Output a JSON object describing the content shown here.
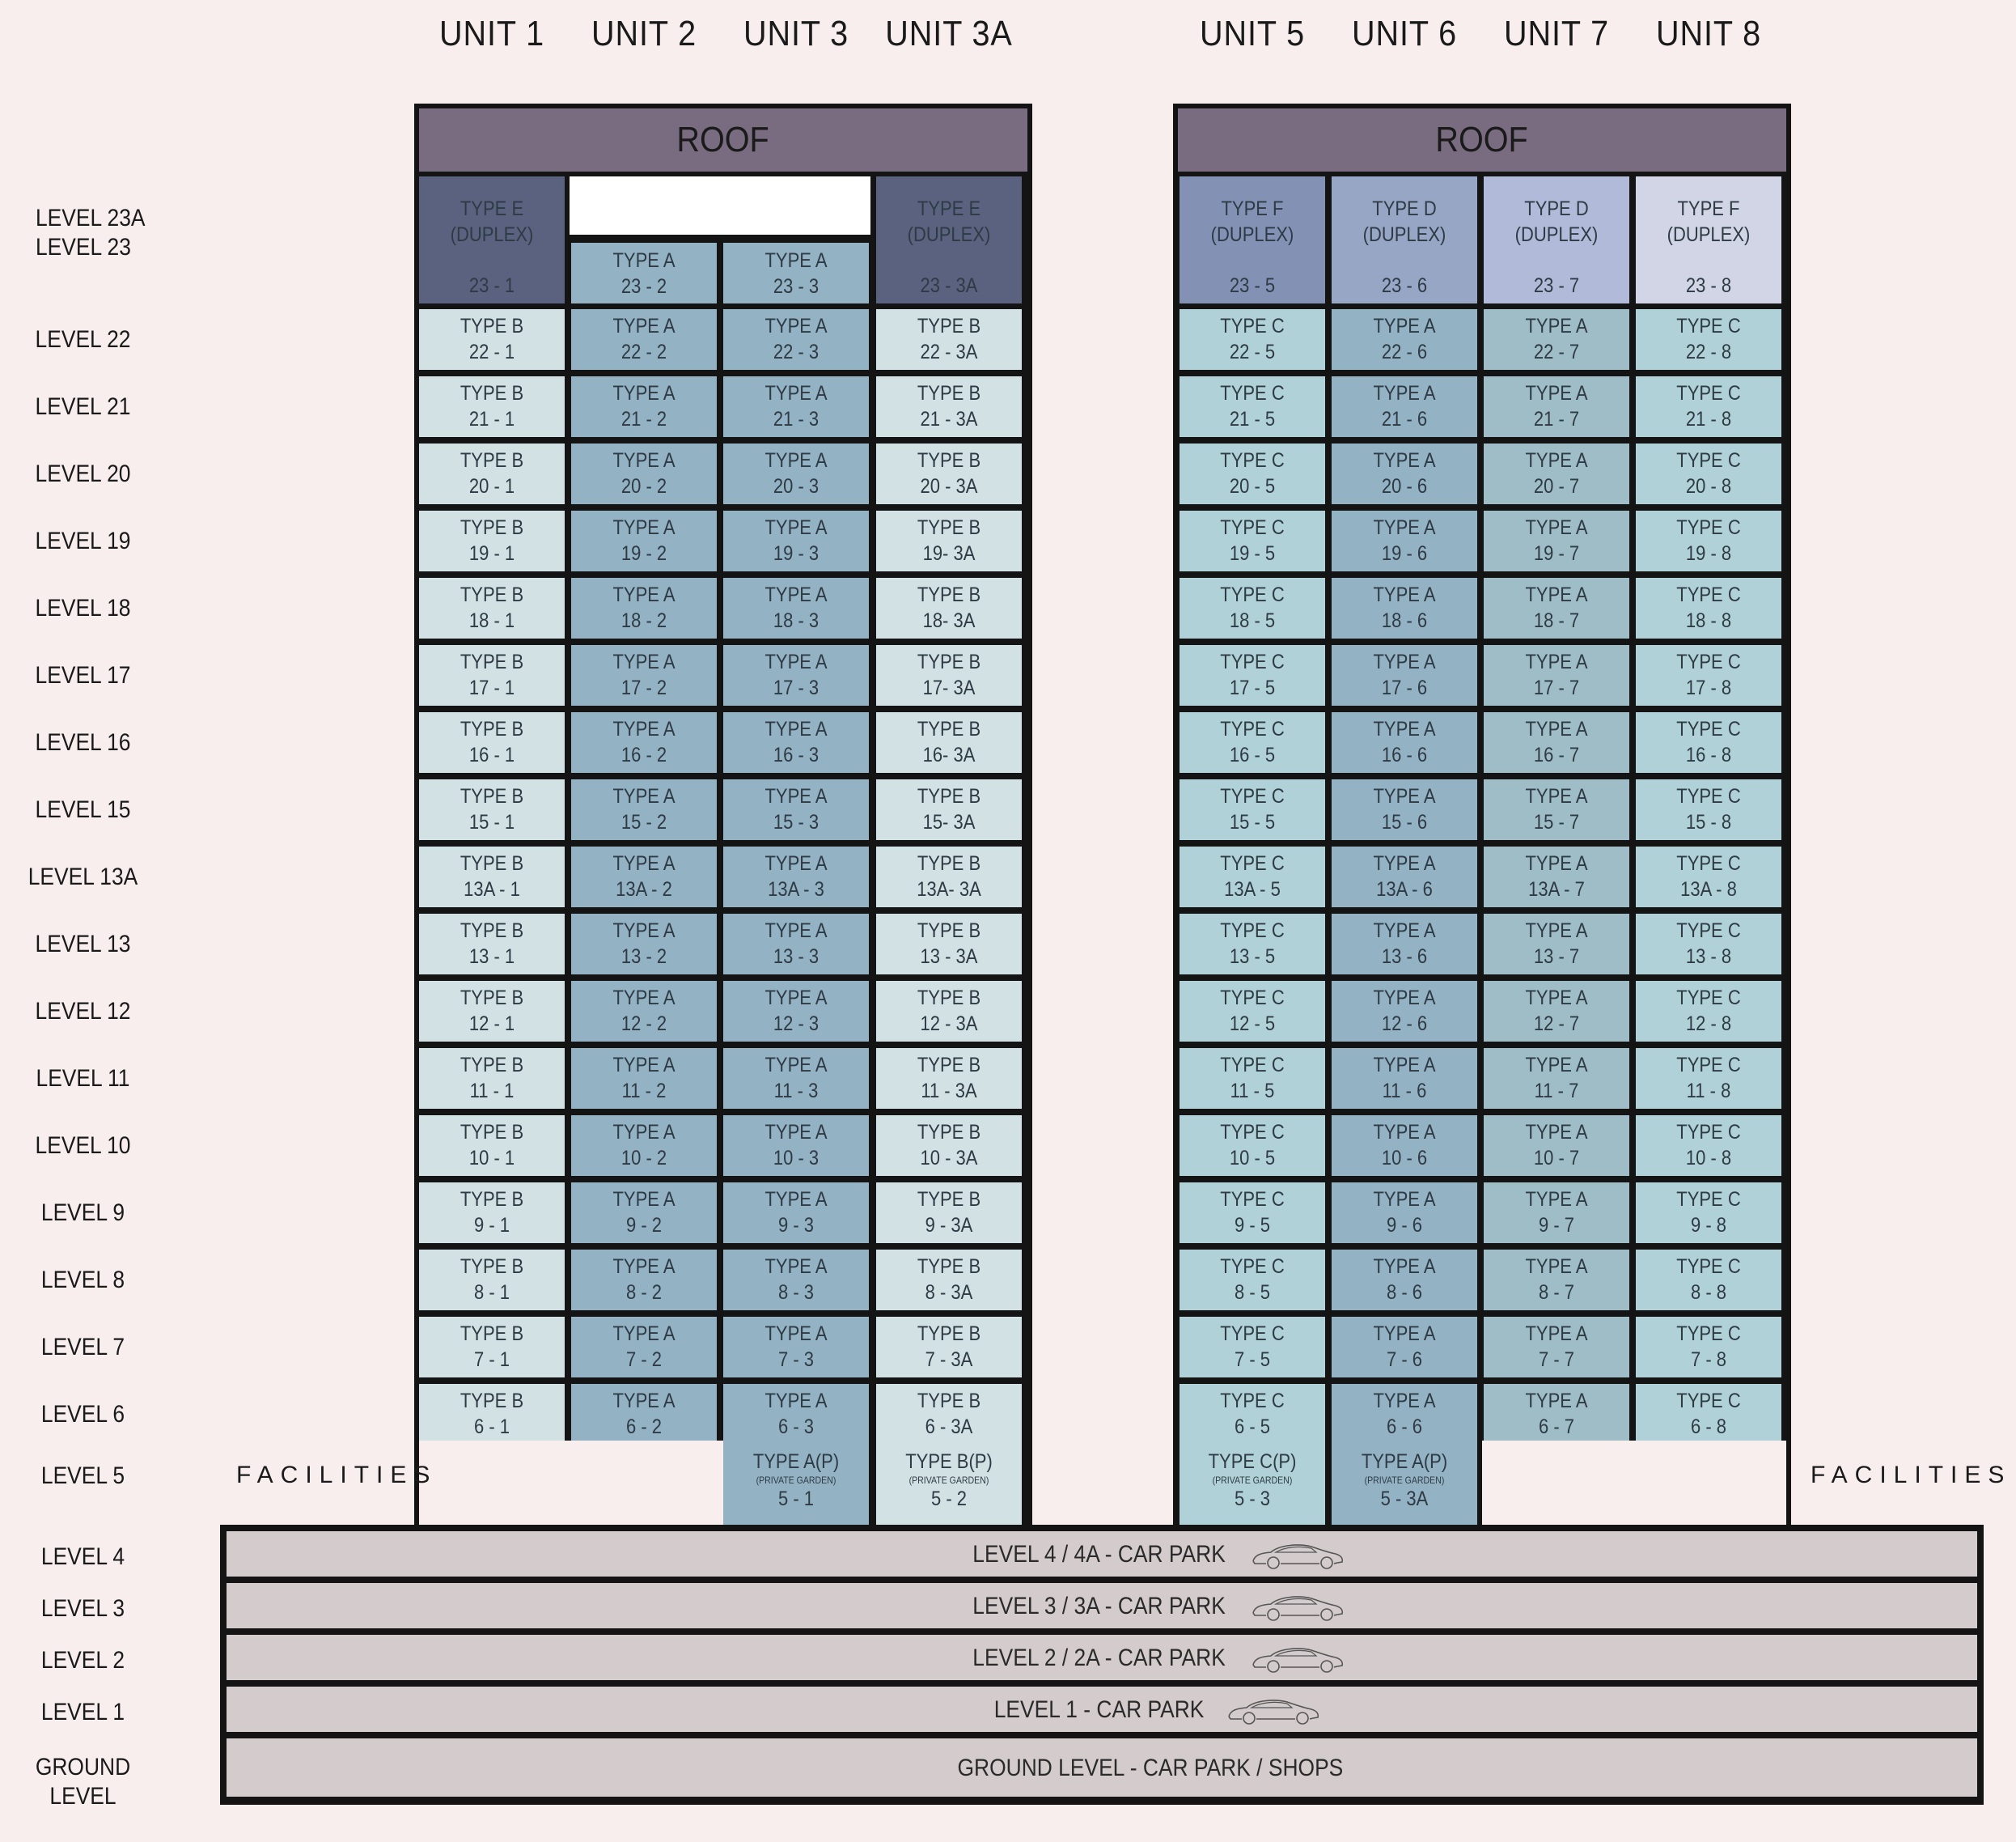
{
  "units_left": [
    "UNIT 1",
    "UNIT 2",
    "UNIT 3",
    "UNIT 3A"
  ],
  "units_right": [
    "UNIT 5",
    "UNIT 6",
    "UNIT 7",
    "UNIT 8"
  ],
  "roof_label": "ROOF",
  "facilities_label": "FACILITIES",
  "top_levels": [
    "LEVEL 23A",
    "LEVEL 23"
  ],
  "levels": [
    "22",
    "21",
    "20",
    "19",
    "18",
    "17",
    "16",
    "15",
    "13A",
    "13",
    "12",
    "11",
    "10",
    "9",
    "8",
    "7",
    "6"
  ],
  "level_prefix": "LEVEL ",
  "level5_label": "LEVEL 5",
  "podium_levels": [
    "LEVEL 4",
    "LEVEL 3",
    "LEVEL 2",
    "LEVEL 1",
    "GROUND LEVEL"
  ],
  "podium_rows": [
    {
      "label": "LEVEL 4 / 4A - CAR PARK",
      "car": true
    },
    {
      "label": "LEVEL 3 / 3A - CAR PARK",
      "car": true
    },
    {
      "label": "LEVEL 2 / 2A - CAR PARK",
      "car": true
    },
    {
      "label": "LEVEL 1 - CAR PARK",
      "car": true
    },
    {
      "label": "GROUND LEVEL - CAR PARK / SHOPS",
      "car": false
    }
  ],
  "tower_left": {
    "top": [
      {
        "type": "TYPE E",
        "sub": "(DUPLEX)",
        "unit": "23 - 1",
        "duplex": true,
        "color": "#5b6280"
      },
      {
        "type": "TYPE A",
        "unit": "23 - 2",
        "duplex": false,
        "color": "#93b2c4"
      },
      {
        "type": "TYPE A",
        "unit": "23 - 3",
        "duplex": false,
        "color": "#93b2c4"
      },
      {
        "type": "TYPE E",
        "sub": "(DUPLEX)",
        "unit": "23 - 3A",
        "duplex": true,
        "color": "#5b6280"
      }
    ],
    "col_types": [
      "TYPE B",
      "TYPE A",
      "TYPE A",
      "TYPE B"
    ],
    "col_suffix": [
      "1",
      "2",
      "3",
      "3A"
    ],
    "col_colors": [
      "#d2e1e4",
      "#93b2c4",
      "#93b2c4",
      "#d2e1e4"
    ],
    "unit_overrides": {
      "19-3": "19- 3A",
      "18-3": "18- 3A",
      "17-3": "17- 3A",
      "16-3": "16- 3A",
      "15-3": "15- 3A",
      "13A-3": "13A- 3A",
      "21-3": "21 - 3A",
      "20-3": "20 - 3A",
      "22-3": "22 - 3A"
    },
    "level5": [
      null,
      null,
      {
        "type": "TYPE A(P)",
        "note": "(PRIVATE GARDEN)",
        "unit": "5 - 1",
        "color": "#93b2c4"
      },
      {
        "type": "TYPE B(P)",
        "note": "(PRIVATE GARDEN)",
        "unit": "5 - 2",
        "color": "#d2e1e4"
      }
    ]
  },
  "tower_right": {
    "top": [
      {
        "type": "TYPE F",
        "sub": "(DUPLEX)",
        "unit": "23 - 5",
        "duplex": true,
        "color": "#8391b5"
      },
      {
        "type": "TYPE D",
        "sub": "(DUPLEX)",
        "unit": "23 - 6",
        "duplex": true,
        "color": "#98a6c6"
      },
      {
        "type": "TYPE D",
        "sub": "(DUPLEX)",
        "unit": "23 - 7",
        "duplex": true,
        "color": "#b1bad8"
      },
      {
        "type": "TYPE F",
        "sub": "(DUPLEX)",
        "unit": "23 - 8",
        "duplex": true,
        "color": "#d2d5e6"
      }
    ],
    "col_types": [
      "TYPE C",
      "TYPE A",
      "TYPE A",
      "TYPE C"
    ],
    "col_suffix": [
      "5",
      "6",
      "7",
      "8"
    ],
    "col_colors": [
      "#b0d1d8",
      "#93b2c4",
      "#9fbdc6",
      "#b0d1d8"
    ],
    "unit_overrides": {},
    "level5": [
      {
        "type": "TYPE C(P)",
        "note": "(PRIVATE GARDEN)",
        "unit": "5 - 3",
        "color": "#b0d1d8"
      },
      {
        "type": "TYPE A(P)",
        "note": "(PRIVATE GARDEN)",
        "unit": "5 - 3A",
        "color": "#93b2c4"
      },
      null,
      null
    ]
  }
}
